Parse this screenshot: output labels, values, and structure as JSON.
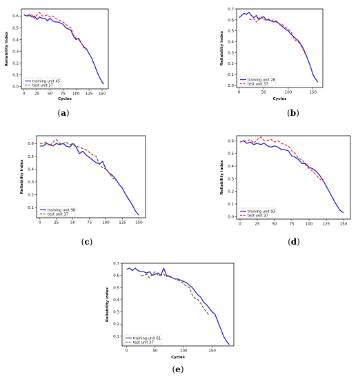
{
  "colors": {
    "training": "#2020d0",
    "test_red": "#ff2020",
    "test_brown": "#8b4513"
  },
  "chart_data": [
    {
      "type": "line",
      "caption": "(a)",
      "xlabel": "Cycles",
      "ylabel": "Reliability index",
      "xlim": [
        -5,
        162
      ],
      "ylim": [
        -0.02,
        0.66
      ],
      "xticks": [
        0,
        25,
        50,
        75,
        100,
        125,
        150
      ],
      "yticks": [
        0.0,
        0.1,
        0.2,
        0.3,
        0.4,
        0.5,
        0.6
      ],
      "ytick_labels": [
        "0.0",
        "0.1",
        "0.2",
        "0.3",
        "0.4",
        "0.5",
        "0.6"
      ],
      "legend": "lower-left",
      "series": [
        {
          "name": "training unit 45",
          "style": "solid",
          "color": "training",
          "x": [
            0,
            5,
            10,
            15,
            20,
            25,
            30,
            35,
            40,
            45,
            50,
            55,
            60,
            65,
            70,
            75,
            80,
            85,
            90,
            95,
            100,
            105,
            110,
            115,
            120,
            125,
            130,
            135,
            140,
            145,
            150,
            153
          ],
          "y": [
            0.61,
            0.6,
            0.61,
            0.59,
            0.6,
            0.57,
            0.59,
            0.58,
            0.58,
            0.56,
            0.58,
            0.56,
            0.55,
            0.55,
            0.54,
            0.53,
            0.5,
            0.49,
            0.48,
            0.43,
            0.4,
            0.41,
            0.37,
            0.34,
            0.32,
            0.28,
            0.24,
            0.19,
            0.13,
            0.08,
            0.04,
            0.02
          ]
        },
        {
          "name": "test unit 37",
          "style": "dashed",
          "color": "test_red",
          "x": [
            5,
            10,
            15,
            20,
            25,
            30,
            35,
            40,
            45,
            50,
            55,
            60,
            65,
            70,
            75,
            80,
            85,
            90,
            95,
            100,
            105,
            110,
            115,
            120
          ],
          "y": [
            0.6,
            0.6,
            0.61,
            0.58,
            0.61,
            0.63,
            0.6,
            0.6,
            0.61,
            0.59,
            0.6,
            0.58,
            0.57,
            0.56,
            0.55,
            0.53,
            0.51,
            0.5,
            0.44,
            0.41,
            0.4,
            0.37,
            0.33,
            0.31
          ]
        }
      ]
    },
    {
      "type": "line",
      "caption": "(b)",
      "xlabel": "Cycles",
      "ylabel": "Reliability index",
      "xlim": [
        -5,
        170
      ],
      "ylim": [
        -0.02,
        0.7
      ],
      "xticks": [
        0,
        50,
        100,
        150
      ],
      "yticks": [
        0.0,
        0.1,
        0.2,
        0.3,
        0.4,
        0.5,
        0.6,
        0.7
      ],
      "ytick_labels": [
        "0.0",
        "0.1",
        "0.2",
        "0.3",
        "0.4",
        "0.5",
        "0.6",
        "0.7"
      ],
      "legend": "lower-left",
      "series": [
        {
          "name": "training unit 28",
          "style": "solid",
          "color": "training",
          "x": [
            0,
            5,
            10,
            15,
            20,
            25,
            30,
            35,
            40,
            45,
            50,
            55,
            60,
            65,
            70,
            75,
            80,
            85,
            90,
            95,
            100,
            105,
            110,
            115,
            120,
            125,
            130,
            135,
            140,
            145,
            150,
            155,
            160
          ],
          "y": [
            0.62,
            0.64,
            0.66,
            0.65,
            0.67,
            0.64,
            0.62,
            0.64,
            0.6,
            0.62,
            0.63,
            0.6,
            0.6,
            0.59,
            0.58,
            0.59,
            0.57,
            0.55,
            0.53,
            0.51,
            0.5,
            0.47,
            0.45,
            0.43,
            0.41,
            0.38,
            0.34,
            0.29,
            0.23,
            0.17,
            0.1,
            0.06,
            0.03
          ]
        },
        {
          "name": "test unit 37",
          "style": "dashed",
          "color": "test_red",
          "x": [
            20,
            25,
            30,
            35,
            40,
            45,
            50,
            55,
            60,
            65,
            70,
            75,
            80,
            85,
            90,
            95,
            100,
            105,
            110,
            115,
            120,
            125,
            130,
            135
          ],
          "y": [
            0.61,
            0.6,
            0.61,
            0.58,
            0.61,
            0.63,
            0.6,
            0.6,
            0.61,
            0.59,
            0.6,
            0.58,
            0.57,
            0.56,
            0.55,
            0.53,
            0.51,
            0.5,
            0.44,
            0.41,
            0.4,
            0.37,
            0.33,
            0.28
          ]
        }
      ]
    },
    {
      "type": "line",
      "caption": "(c)",
      "xlabel": "",
      "ylabel": "Reliability index",
      "xlim": [
        -5,
        160
      ],
      "ylim": [
        0.02,
        0.66
      ],
      "xticks": [
        0,
        25,
        50,
        75,
        100,
        125,
        150
      ],
      "yticks": [
        0.1,
        0.2,
        0.3,
        0.4,
        0.5,
        0.6
      ],
      "ytick_labels": [
        "0.1",
        "0.2",
        "0.3",
        "0.4",
        "0.5",
        "0.6"
      ],
      "legend": "lower-left",
      "series": [
        {
          "name": "training unit 98",
          "style": "solid",
          "color": "training",
          "x": [
            0,
            5,
            10,
            15,
            20,
            25,
            30,
            35,
            40,
            45,
            50,
            55,
            60,
            65,
            70,
            75,
            80,
            85,
            90,
            95,
            100,
            105,
            110,
            115,
            120,
            125,
            130,
            135,
            140,
            145,
            150
          ],
          "y": [
            0.58,
            0.58,
            0.6,
            0.59,
            0.58,
            0.6,
            0.59,
            0.6,
            0.58,
            0.57,
            0.6,
            0.57,
            0.52,
            0.54,
            0.51,
            0.49,
            0.47,
            0.45,
            0.44,
            0.46,
            0.4,
            0.37,
            0.35,
            0.32,
            0.28,
            0.25,
            0.2,
            0.16,
            0.12,
            0.07,
            0.04
          ]
        },
        {
          "name": "test unit 37",
          "style": "dashed",
          "color": "test_brown",
          "x": [
            0,
            5,
            10,
            15,
            20,
            25,
            30,
            35,
            40,
            45,
            50,
            55,
            60,
            65,
            70,
            75,
            80,
            85,
            90,
            95,
            100,
            105,
            110,
            115
          ],
          "y": [
            0.6,
            0.6,
            0.61,
            0.58,
            0.61,
            0.63,
            0.6,
            0.6,
            0.61,
            0.59,
            0.6,
            0.58,
            0.57,
            0.56,
            0.55,
            0.53,
            0.51,
            0.5,
            0.44,
            0.41,
            0.4,
            0.37,
            0.33,
            0.31
          ]
        }
      ]
    },
    {
      "type": "line",
      "caption": "(d)",
      "xlabel": "",
      "ylabel": "Reliability index",
      "xlim": [
        -5,
        160
      ],
      "ylim": [
        -0.02,
        0.64
      ],
      "xticks": [
        0,
        25,
        50,
        75,
        100,
        125,
        150
      ],
      "yticks": [
        0.0,
        0.1,
        0.2,
        0.3,
        0.4,
        0.5,
        0.6
      ],
      "ytick_labels": [
        "0.0",
        "0.1",
        "0.2",
        "0.3",
        "0.4",
        "0.5",
        "0.6"
      ],
      "legend": "lower-left",
      "series": [
        {
          "name": "training unit 93",
          "style": "solid",
          "color": "training",
          "x": [
            0,
            5,
            10,
            15,
            20,
            25,
            30,
            35,
            40,
            45,
            50,
            55,
            60,
            65,
            70,
            75,
            80,
            85,
            90,
            95,
            100,
            105,
            110,
            115,
            120,
            125,
            130,
            135,
            140,
            145,
            150
          ],
          "y": [
            0.59,
            0.6,
            0.58,
            0.59,
            0.57,
            0.58,
            0.57,
            0.58,
            0.56,
            0.55,
            0.56,
            0.55,
            0.53,
            0.53,
            0.52,
            0.48,
            0.47,
            0.45,
            0.42,
            0.42,
            0.39,
            0.38,
            0.36,
            0.33,
            0.29,
            0.24,
            0.19,
            0.14,
            0.09,
            0.05,
            0.03
          ]
        },
        {
          "name": "test unit 37",
          "style": "dashed",
          "color": "test_red",
          "x": [
            5,
            10,
            15,
            20,
            25,
            30,
            35,
            40,
            45,
            50,
            55,
            60,
            65,
            70,
            75,
            80,
            85,
            90,
            95,
            100,
            105,
            110,
            115,
            120
          ],
          "y": [
            0.6,
            0.6,
            0.61,
            0.58,
            0.61,
            0.63,
            0.6,
            0.6,
            0.61,
            0.59,
            0.6,
            0.58,
            0.57,
            0.56,
            0.52,
            0.5,
            0.46,
            0.45,
            0.41,
            0.38,
            0.36,
            0.33,
            0.3,
            0.28
          ]
        }
      ]
    },
    {
      "type": "line",
      "caption": "(e)",
      "xlabel": "Cycles",
      "ylabel": "Reliability index",
      "xlim": [
        -8,
        188
      ],
      "ylim": [
        0.02,
        0.7
      ],
      "xticks": [
        0,
        50,
        100,
        150
      ],
      "yticks": [
        0.1,
        0.2,
        0.3,
        0.4,
        0.5,
        0.6,
        0.7
      ],
      "ytick_labels": [
        "0.1",
        "0.2",
        "0.3",
        "0.4",
        "0.5",
        "0.6",
        "0.7"
      ],
      "legend": "lower-left",
      "series": [
        {
          "name": "training unit 61",
          "style": "solid",
          "color": "training",
          "x": [
            0,
            5,
            10,
            15,
            20,
            25,
            30,
            35,
            40,
            45,
            50,
            55,
            60,
            65,
            70,
            75,
            80,
            85,
            90,
            95,
            100,
            105,
            110,
            115,
            120,
            125,
            130,
            135,
            140,
            145,
            150,
            155,
            160,
            165,
            170,
            175,
            180
          ],
          "y": [
            0.65,
            0.66,
            0.64,
            0.66,
            0.64,
            0.63,
            0.63,
            0.62,
            0.63,
            0.6,
            0.61,
            0.62,
            0.6,
            0.66,
            0.6,
            0.59,
            0.58,
            0.57,
            0.57,
            0.56,
            0.55,
            0.54,
            0.52,
            0.5,
            0.47,
            0.44,
            0.42,
            0.38,
            0.36,
            0.33,
            0.3,
            0.28,
            0.22,
            0.16,
            0.1,
            0.06,
            0.03
          ]
        },
        {
          "name": "test unit 37",
          "style": "dashed",
          "color": "test_brown",
          "x": [
            25,
            30,
            35,
            40,
            45,
            50,
            55,
            60,
            65,
            70,
            75,
            80,
            85,
            90,
            95,
            100,
            105,
            110,
            115,
            120,
            125,
            130,
            135,
            140,
            145
          ],
          "y": [
            0.6,
            0.6,
            0.61,
            0.58,
            0.61,
            0.63,
            0.6,
            0.6,
            0.61,
            0.59,
            0.6,
            0.58,
            0.57,
            0.56,
            0.55,
            0.53,
            0.51,
            0.5,
            0.44,
            0.41,
            0.4,
            0.37,
            0.33,
            0.3,
            0.27
          ]
        }
      ]
    }
  ]
}
